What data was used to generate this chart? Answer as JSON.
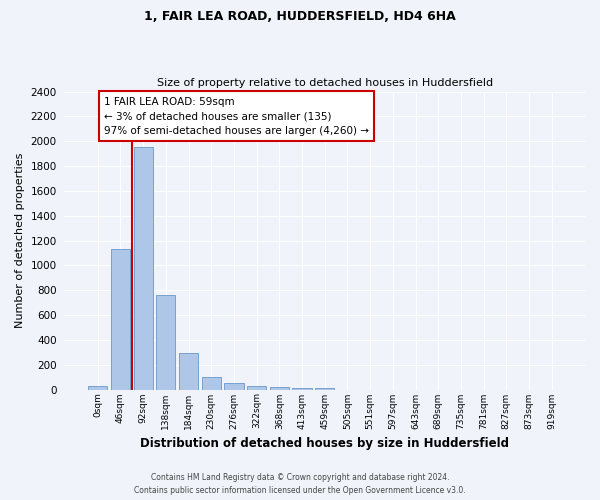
{
  "title1": "1, FAIR LEA ROAD, HUDDERSFIELD, HD4 6HA",
  "title2": "Size of property relative to detached houses in Huddersfield",
  "xlabel": "Distribution of detached houses by size in Huddersfield",
  "ylabel": "Number of detached properties",
  "categories": [
    "0sqm",
    "46sqm",
    "92sqm",
    "138sqm",
    "184sqm",
    "230sqm",
    "276sqm",
    "322sqm",
    "368sqm",
    "413sqm",
    "459sqm",
    "505sqm",
    "551sqm",
    "597sqm",
    "643sqm",
    "689sqm",
    "735sqm",
    "781sqm",
    "827sqm",
    "873sqm",
    "919sqm"
  ],
  "values": [
    30,
    1130,
    1950,
    760,
    295,
    100,
    50,
    30,
    18,
    10,
    10,
    0,
    0,
    0,
    0,
    0,
    0,
    0,
    0,
    0,
    0
  ],
  "bar_color": "#aec6e8",
  "bar_edge_color": "#6699cc",
  "annotation_box_color": "#ffffff",
  "annotation_border_color": "#cc0000",
  "property_line_color": "#cc0000",
  "property_line_x": 1.5,
  "annotation_text_line1": "1 FAIR LEA ROAD: 59sqm",
  "annotation_text_line2": "← 3% of detached houses are smaller (135)",
  "annotation_text_line3": "97% of semi-detached houses are larger (4,260) →",
  "ylim": [
    0,
    2400
  ],
  "yticks": [
    0,
    200,
    400,
    600,
    800,
    1000,
    1200,
    1400,
    1600,
    1800,
    2000,
    2200,
    2400
  ],
  "footer1": "Contains HM Land Registry data © Crown copyright and database right 2024.",
  "footer2": "Contains public sector information licensed under the Open Government Licence v3.0.",
  "background_color": "#f0f4fa",
  "plot_bg_color": "#f0f4fa"
}
